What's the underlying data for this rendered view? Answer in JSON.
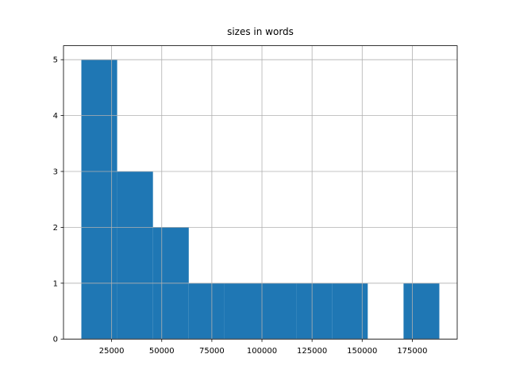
{
  "chart_data": {
    "type": "histogram",
    "title": "sizes in words",
    "bins": [
      9900,
      27760,
      45620,
      63480,
      81340,
      99200,
      117060,
      134920,
      152780,
      170640,
      188500
    ],
    "values": [
      5,
      3,
      2,
      1,
      1,
      1,
      1,
      1,
      0,
      1
    ],
    "color": "#1f77b4",
    "xlim": [
      990,
      197410
    ],
    "xticks": [
      25000,
      50000,
      75000,
      100000,
      125000,
      150000,
      175000
    ],
    "ylim": [
      0,
      5.25
    ],
    "yticks": [
      0,
      1,
      2,
      3,
      4,
      5
    ],
    "grid": true
  }
}
